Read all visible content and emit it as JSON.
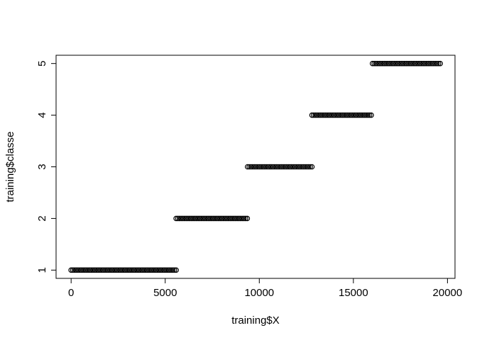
{
  "chart_data": {
    "type": "scatter",
    "xlabel": "training$X",
    "ylabel": "training$classe",
    "xlim": [
      -800,
      20400
    ],
    "ylim": [
      0.84,
      5.16
    ],
    "xticks": [
      0,
      5000,
      10000,
      15000,
      20000
    ],
    "xtick_labels": [
      "0",
      "5000",
      "10000",
      "15000",
      "20000"
    ],
    "yticks": [
      1,
      2,
      3,
      4,
      5
    ],
    "ytick_labels": [
      "1",
      "2",
      "3",
      "4",
      "5"
    ],
    "grid": false,
    "legend": "none",
    "point_color": "#000000",
    "series": [
      {
        "values": [
          {
            "x_start": 0,
            "x_end": 5580,
            "y": 1
          }
        ]
      },
      {
        "values": [
          {
            "x_start": 5580,
            "x_end": 9377,
            "y": 2
          }
        ]
      },
      {
        "values": [
          {
            "x_start": 9377,
            "x_end": 12800,
            "y": 3
          }
        ]
      },
      {
        "values": [
          {
            "x_start": 12800,
            "x_end": 16016,
            "y": 4
          }
        ]
      },
      {
        "values": [
          {
            "x_start": 16016,
            "x_end": 19622,
            "y": 5
          }
        ]
      }
    ]
  }
}
